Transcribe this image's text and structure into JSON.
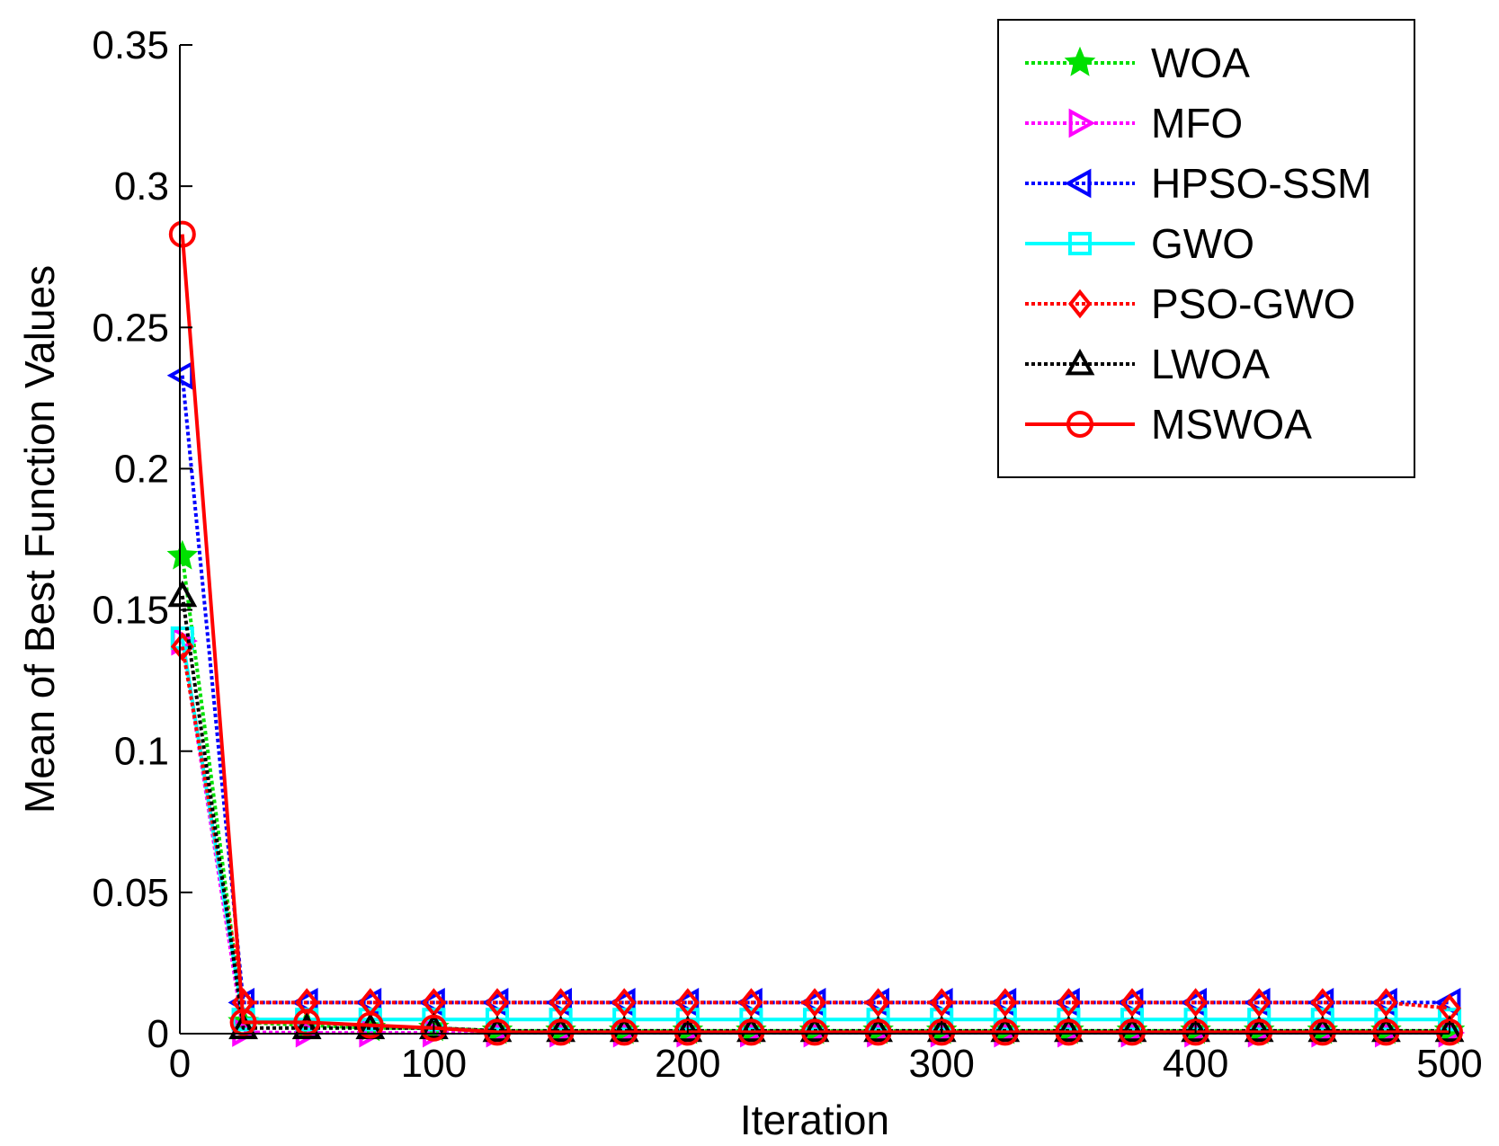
{
  "chart_data": {
    "type": "line",
    "title": "",
    "xlabel": "Iteration",
    "ylabel": "Mean of Best Function Values",
    "xlim": [
      0,
      500
    ],
    "ylim": [
      0,
      0.35
    ],
    "xticks": [
      0,
      100,
      200,
      300,
      400,
      500
    ],
    "xtick_labels": [
      "0",
      "100",
      "200",
      "300",
      "400",
      "500"
    ],
    "yticks": [
      0,
      0.05,
      0.1,
      0.15,
      0.2,
      0.25,
      0.3,
      0.35
    ],
    "ytick_labels": [
      "0",
      "0.05",
      "0.1",
      "0.15",
      "0.2",
      "0.25",
      "0.3",
      "0.35"
    ],
    "grid": false,
    "legend_position": "top-right",
    "x": [
      1,
      25,
      50,
      75,
      100,
      125,
      150,
      175,
      200,
      225,
      250,
      275,
      300,
      325,
      350,
      375,
      400,
      425,
      450,
      475,
      500
    ],
    "series": [
      {
        "name": "WOA",
        "color": "#00e000",
        "style": "dotted",
        "marker": "star",
        "values": [
          0.169,
          0.004,
          0.003,
          0.002,
          0.002,
          0.001,
          0.001,
          0.001,
          0.001,
          0.001,
          0.001,
          0.001,
          0.001,
          0.001,
          0.001,
          0.001,
          0.001,
          0.001,
          0.001,
          0.001,
          0.001
        ]
      },
      {
        "name": "MFO",
        "color": "#ff00ff",
        "style": "dotted",
        "marker": "triangle-right",
        "values": [
          0.139,
          0.0005,
          0.0003,
          0.0003,
          0.0003,
          0.0003,
          0.0003,
          0.0003,
          0.0003,
          0.0003,
          0.0003,
          0.0003,
          0.0003,
          0.0003,
          0.0003,
          0.0003,
          0.0003,
          0.0003,
          0.0003,
          0.0003,
          0.0003
        ]
      },
      {
        "name": "HPSO-SSM",
        "color": "#0000ff",
        "style": "dotted",
        "marker": "triangle-left",
        "values": [
          0.233,
          0.011,
          0.011,
          0.011,
          0.011,
          0.011,
          0.011,
          0.011,
          0.011,
          0.011,
          0.011,
          0.011,
          0.011,
          0.011,
          0.011,
          0.011,
          0.011,
          0.011,
          0.011,
          0.011,
          0.011
        ]
      },
      {
        "name": "GWO",
        "color": "#00ffff",
        "style": "solid",
        "marker": "square",
        "values": [
          0.14,
          0.005,
          0.005,
          0.005,
          0.005,
          0.005,
          0.005,
          0.005,
          0.005,
          0.005,
          0.005,
          0.005,
          0.005,
          0.005,
          0.005,
          0.005,
          0.005,
          0.005,
          0.005,
          0.005,
          0.005
        ]
      },
      {
        "name": "PSO-GWO",
        "color": "#ff0000",
        "style": "dotted",
        "marker": "diamond",
        "values": [
          0.137,
          0.011,
          0.011,
          0.011,
          0.011,
          0.011,
          0.011,
          0.011,
          0.011,
          0.011,
          0.011,
          0.011,
          0.011,
          0.011,
          0.011,
          0.011,
          0.011,
          0.011,
          0.011,
          0.011,
          0.009
        ]
      },
      {
        "name": "LWOA",
        "color": "#000000",
        "style": "dotted",
        "marker": "triangle-up",
        "values": [
          0.155,
          0.002,
          0.002,
          0.002,
          0.002,
          0.001,
          0.001,
          0.001,
          0.001,
          0.001,
          0.001,
          0.001,
          0.001,
          0.001,
          0.001,
          0.001,
          0.001,
          0.001,
          0.001,
          0.001,
          0.001
        ]
      },
      {
        "name": "MSWOA",
        "color": "#ff0000",
        "style": "solid",
        "marker": "circle",
        "values": [
          0.283,
          0.004,
          0.004,
          0.003,
          0.002,
          0.0005,
          0.0005,
          0.0005,
          0.0005,
          0.0005,
          0.0005,
          0.0005,
          0.0005,
          0.0005,
          0.0005,
          0.0005,
          0.0005,
          0.0005,
          0.0005,
          0.0005,
          0.0005
        ]
      }
    ]
  }
}
